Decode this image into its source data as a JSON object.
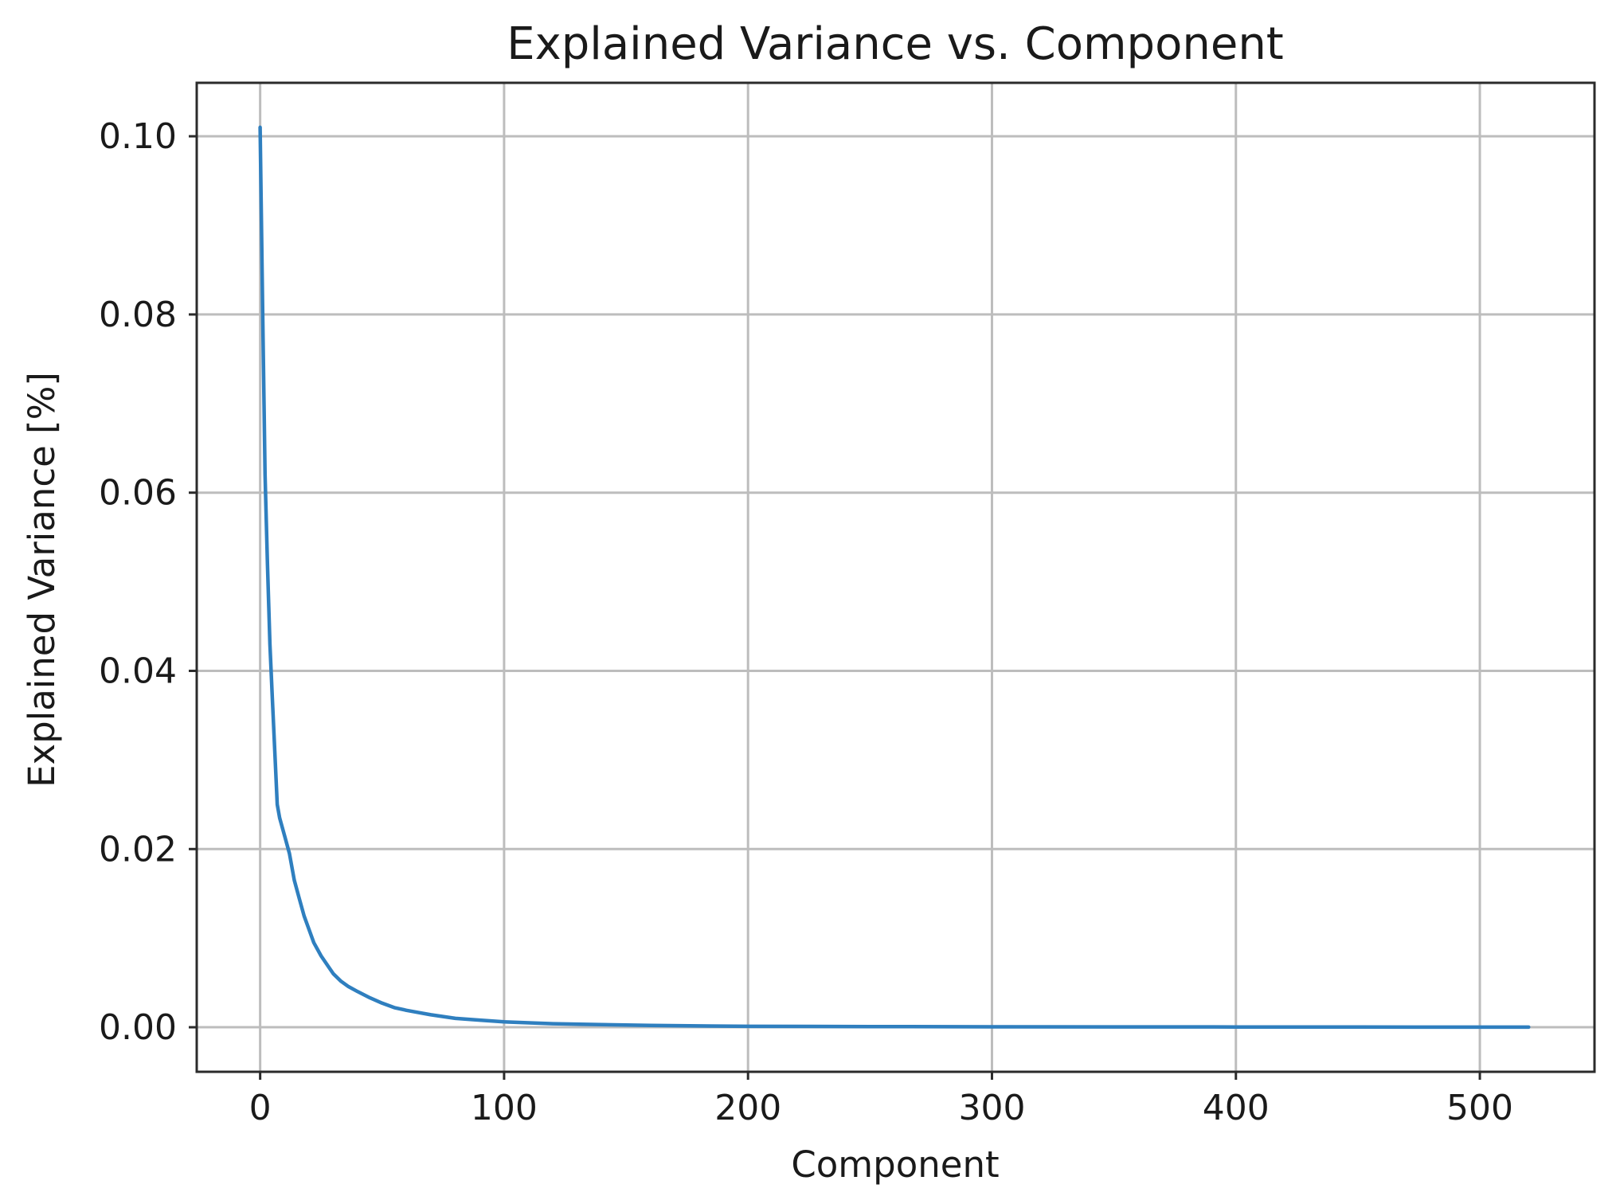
{
  "chart_data": {
    "type": "line",
    "title": "Explained Variance vs. Component",
    "xlabel": "Component",
    "ylabel": "Explained Variance [%]",
    "xlim": [
      -26,
      547
    ],
    "ylim": [
      -0.005,
      0.106
    ],
    "xticks": [
      0,
      100,
      200,
      300,
      400,
      500
    ],
    "xtick_labels": [
      "0",
      "100",
      "200",
      "300",
      "400",
      "500"
    ],
    "yticks": [
      0.0,
      0.02,
      0.04,
      0.06,
      0.08,
      0.1
    ],
    "ytick_labels": [
      "0.00",
      "0.02",
      "0.04",
      "0.06",
      "0.08",
      "0.10"
    ],
    "grid": true,
    "legend": "none",
    "colors": {
      "line": "#2f7fbf",
      "grid": "#bdbdbd",
      "frame": "#2b2b2b"
    },
    "series": [
      {
        "x": [
          0,
          1,
          2,
          3,
          4,
          5,
          6,
          7,
          8,
          10,
          12,
          14,
          16,
          18,
          20,
          22,
          25,
          28,
          30,
          33,
          36,
          40,
          45,
          50,
          55,
          60,
          70,
          80,
          90,
          100,
          120,
          140,
          160,
          180,
          200,
          250,
          300,
          350,
          400,
          450,
          500,
          520
        ],
        "values": [
          0.101,
          0.081,
          0.062,
          0.052,
          0.043,
          0.037,
          0.031,
          0.025,
          0.0235,
          0.0215,
          0.0195,
          0.0165,
          0.0145,
          0.0125,
          0.011,
          0.0095,
          0.008,
          0.0068,
          0.006,
          0.0052,
          0.0046,
          0.004,
          0.0033,
          0.0027,
          0.0022,
          0.0019,
          0.0014,
          0.001,
          0.0008,
          0.0006,
          0.0004,
          0.0003,
          0.0002,
          0.00015,
          0.0001,
          8e-05,
          5e-05,
          4e-05,
          3e-05,
          2e-05,
          1e-05,
          1e-05
        ]
      }
    ]
  }
}
